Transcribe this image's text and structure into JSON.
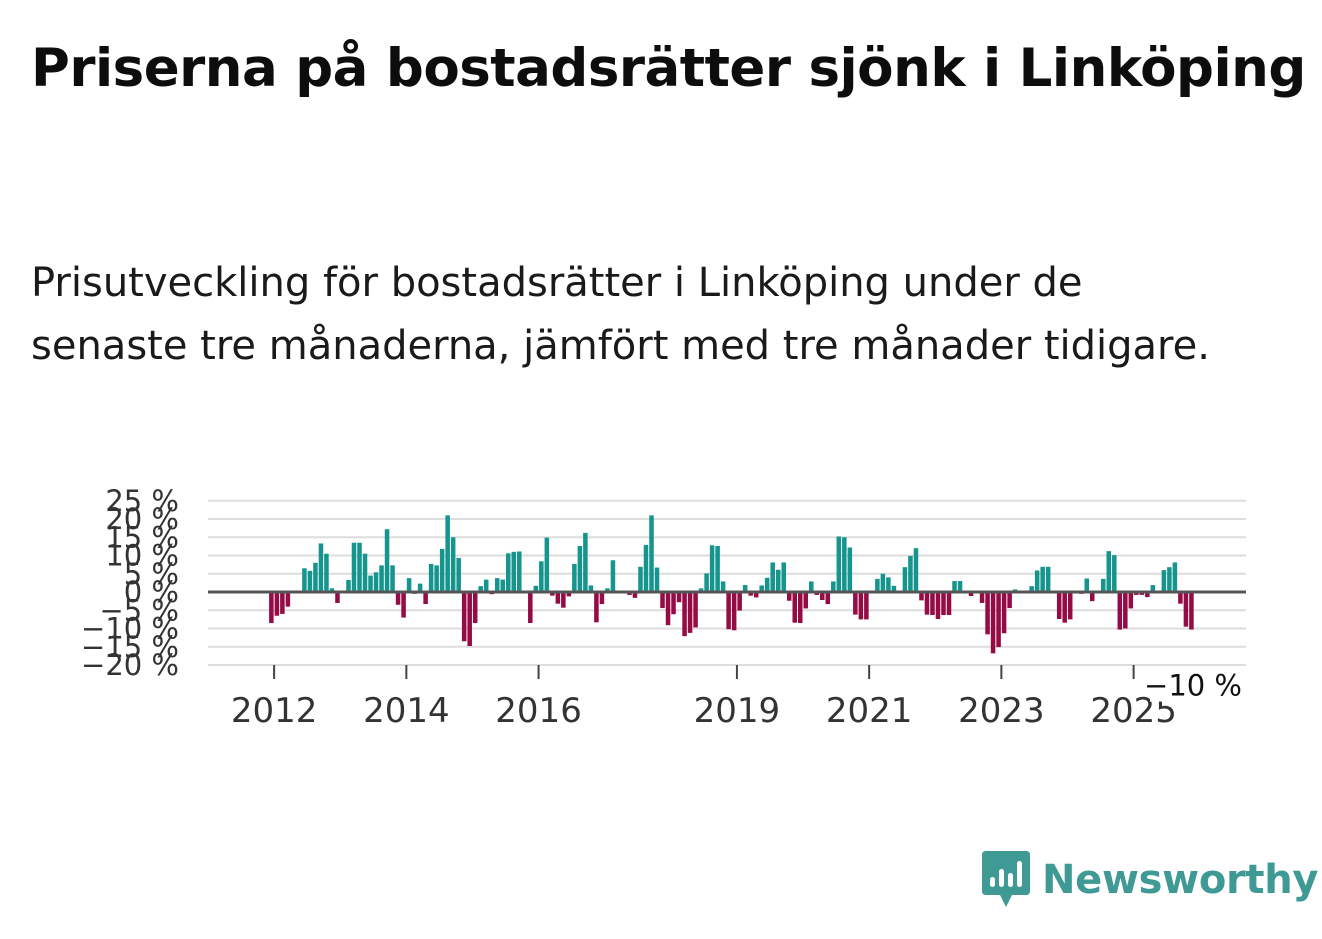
{
  "title": "Priserna på bostadsrätter sjönk i Linköping",
  "subtitle": "Prisutveckling för bostadsrätter i Linköping under de senaste tre månaderna, jämfört med tre månader tidigare.",
  "brand": {
    "name": "Newsworthy",
    "icon": "newsworthy-logo-icon",
    "color": "#3f9a95"
  },
  "chart_data": {
    "type": "bar",
    "title": "Priserna på bostadsrätter sjönk i Linköping",
    "xlabel": "",
    "ylabel": "",
    "ylim": [
      -20,
      25
    ],
    "yticks": [
      25,
      20,
      15,
      10,
      5,
      0,
      -5,
      -10,
      -15,
      -20
    ],
    "ytick_labels": [
      "25 %",
      "20 %",
      "15 %",
      "10 %",
      "5 %",
      "0 %",
      "−5 %",
      "−10 %",
      "−15 %",
      "−20 %"
    ],
    "x_ticks": [
      {
        "label": "2012",
        "x": 2012.0
      },
      {
        "label": "2014",
        "x": 2014.0
      },
      {
        "label": "2016",
        "x": 2016.0
      },
      {
        "label": "2019",
        "x": 2019.0
      },
      {
        "label": "2021",
        "x": 2021.0
      },
      {
        "label": "2023",
        "x": 2023.0
      },
      {
        "label": "2025",
        "x": 2025.0
      }
    ],
    "x_start": 2011.0,
    "x_end": 2026.7,
    "start": 2011.9583,
    "step": 0.08333,
    "positive_color": "#15958e",
    "negative_color": "#950b45",
    "last_label": "−10 %",
    "last_value": -10.3,
    "values": [
      -8.5,
      -6.5,
      -6,
      -4,
      0,
      0,
      6.5,
      5.8,
      8,
      13.3,
      10.5,
      1,
      -3,
      0,
      3.3,
      13.5,
      13.5,
      10.5,
      4.5,
      5.4,
      7.3,
      17.2,
      7.3,
      -3.5,
      -7,
      3.8,
      -0.5,
      2.3,
      -3.3,
      7.7,
      7.3,
      11.8,
      21,
      15,
      9.3,
      -13.5,
      -14.8,
      -8.5,
      1.6,
      3.4,
      -0.6,
      3.8,
      3.4,
      10.6,
      11,
      11.1,
      0,
      -8.5,
      1.7,
      8.4,
      14.9,
      -1,
      -3.2,
      -4.3,
      -1.2,
      7.7,
      12.6,
      16.2,
      1.8,
      -8.3,
      -3.3,
      1,
      8.7,
      0.3,
      0,
      -0.8,
      -1.6,
      6.9,
      12.9,
      21,
      6.7,
      -4.4,
      -9.1,
      -6.1,
      -2.8,
      -12.1,
      -11.2,
      -9.7,
      1,
      5.1,
      12.8,
      12.6,
      2.9,
      -10.2,
      -10.5,
      -5.1,
      1.9,
      -1,
      -1.5,
      1.8,
      3.9,
      8.1,
      6.1,
      8.1,
      -2.4,
      -8.4,
      -8.5,
      -4.5,
      2.9,
      -0.8,
      -2.2,
      -3.3,
      2.9,
      15.2,
      15,
      12.2,
      -6.2,
      -7.5,
      -7.5,
      0,
      3.6,
      5,
      4,
      1.7,
      0,
      6.8,
      9.9,
      12,
      -2.3,
      -6.2,
      -6.3,
      -7.4,
      -6.3,
      -6.3,
      3,
      3,
      0,
      -1.1,
      0,
      -3,
      -11.6,
      -16.8,
      -15.1,
      -11.3,
      -4.4,
      0.7,
      0,
      0,
      1.6,
      5.9,
      6.9,
      6.9,
      0,
      -7.4,
      -8.4,
      -7.5,
      0,
      -0.5,
      3.7,
      -2.5,
      0,
      3.6,
      11.2,
      10.1,
      -10.3,
      -10,
      -4.5,
      -0.8,
      -0.8,
      -1.4,
      1.9,
      0,
      6,
      6.8,
      8.1,
      -3.2,
      -9.5,
      -10.3
    ]
  }
}
